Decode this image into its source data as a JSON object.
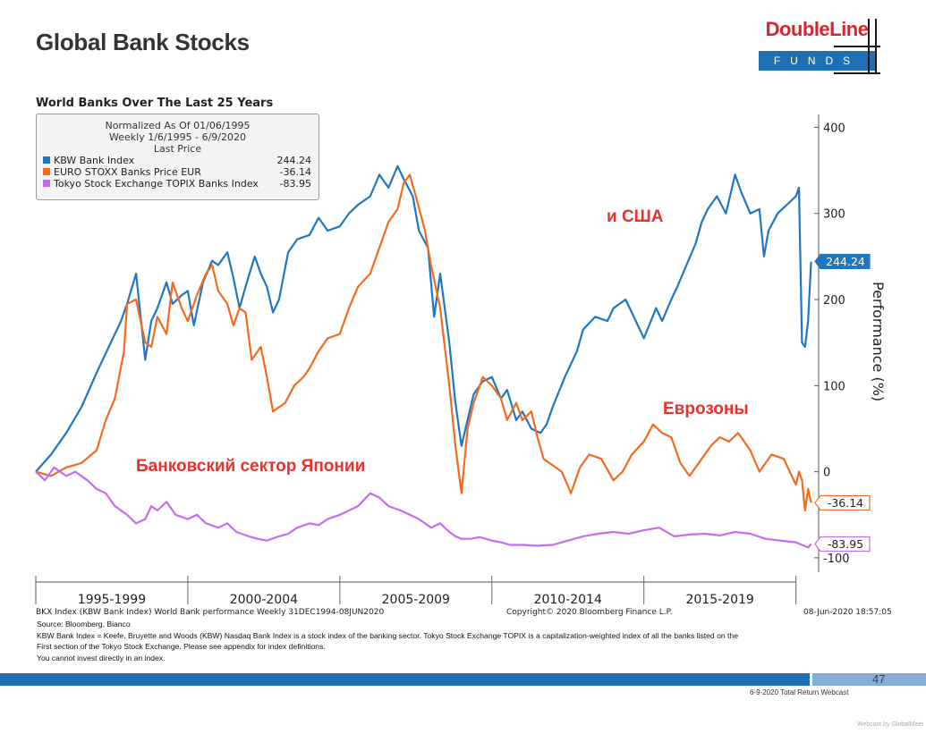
{
  "slide": {
    "title": "Global Bank Stocks",
    "page_number": "47",
    "webcast": "6-9-2020 Total Return Webcast",
    "credit": "Webcast by GlobalMeet"
  },
  "logo": {
    "top": "DoubleLine",
    "bottom": "FUNDS"
  },
  "chart_data": {
    "type": "line",
    "title": "World Banks Over The Last 25 Years",
    "legend": {
      "header": [
        "Normalized As Of 01/06/1995",
        "Weekly 1/6/1995 - 6/9/2020",
        "Last Price"
      ],
      "placement": "top-left"
    },
    "ylabel": "Performance (%)",
    "ylim": [
      -125,
      415
    ],
    "yticks": [
      "400",
      "300",
      "200",
      "100",
      "0",
      "-100"
    ],
    "x_periods": [
      "1995-1999",
      "2000-2004",
      "2005-2009",
      "2010-2014",
      "2015-2019"
    ],
    "xlim": [
      1995.0,
      2020.6
    ],
    "grid": false,
    "series": [
      {
        "name": "KBW Bank Index",
        "color": "#1f77c4",
        "last_value": "244.24",
        "x": [
          1995.0,
          1995.5,
          1996.0,
          1996.5,
          1997.0,
          1997.4,
          1997.8,
          1998.0,
          1998.3,
          1998.6,
          1998.8,
          1999.0,
          1999.3,
          1999.5,
          1999.8,
          2000.0,
          2000.2,
          2000.5,
          2000.8,
          2001.0,
          2001.3,
          2001.5,
          2001.7,
          2001.9,
          2002.2,
          2002.4,
          2002.6,
          2002.8,
          2003.0,
          2003.3,
          2003.6,
          2004.0,
          2004.3,
          2004.6,
          2005.0,
          2005.3,
          2005.6,
          2006.0,
          2006.3,
          2006.6,
          2006.9,
          2007.1,
          2007.4,
          2007.6,
          2007.9,
          2008.1,
          2008.3,
          2008.6,
          2008.8,
          2009.0,
          2009.2,
          2009.4,
          2009.7,
          2010.0,
          2010.3,
          2010.5,
          2010.8,
          2011.0,
          2011.3,
          2011.6,
          2011.8,
          2012.0,
          2012.4,
          2012.8,
          2013.0,
          2013.4,
          2013.8,
          2014.0,
          2014.4,
          2014.8,
          2015.0,
          2015.4,
          2015.6,
          2015.9,
          2016.1,
          2016.4,
          2016.7,
          2016.9,
          2017.1,
          2017.4,
          2017.7,
          2018.0,
          2018.2,
          2018.5,
          2018.8,
          2018.95,
          2019.1,
          2019.4,
          2019.7,
          2020.0,
          2020.1,
          2020.15,
          2020.2,
          2020.3,
          2020.4,
          2020.5
        ],
        "y": [
          0,
          20,
          45,
          75,
          115,
          145,
          175,
          195,
          230,
          130,
          175,
          190,
          220,
          195,
          205,
          210,
          170,
          220,
          245,
          240,
          255,
          225,
          190,
          215,
          250,
          230,
          215,
          185,
          200,
          255,
          270,
          275,
          295,
          280,
          285,
          300,
          310,
          320,
          345,
          330,
          355,
          340,
          320,
          280,
          260,
          180,
          230,
          150,
          80,
          30,
          60,
          90,
          105,
          110,
          85,
          95,
          60,
          70,
          50,
          45,
          55,
          75,
          110,
          140,
          165,
          180,
          175,
          190,
          200,
          170,
          155,
          190,
          175,
          200,
          215,
          240,
          265,
          290,
          305,
          320,
          300,
          345,
          325,
          300,
          305,
          250,
          280,
          300,
          310,
          320,
          330,
          240,
          150,
          145,
          175,
          244
        ]
      },
      {
        "name": "EURO STOXX Banks Price EUR",
        "color": "#f46a1f",
        "last_value": "-36.14",
        "x": [
          1995.0,
          1995.5,
          1996.0,
          1996.5,
          1997.0,
          1997.3,
          1997.6,
          1997.9,
          1998.0,
          1998.3,
          1998.6,
          1998.8,
          1999.0,
          1999.3,
          1999.5,
          1999.8,
          2000.0,
          2000.3,
          2000.6,
          2000.8,
          2001.0,
          2001.3,
          2001.5,
          2001.7,
          2001.9,
          2002.1,
          2002.4,
          2002.6,
          2002.8,
          2003.0,
          2003.2,
          2003.5,
          2003.8,
          2004.0,
          2004.3,
          2004.6,
          2005.0,
          2005.3,
          2005.6,
          2006.0,
          2006.3,
          2006.6,
          2006.9,
          2007.1,
          2007.3,
          2007.5,
          2007.8,
          2008.0,
          2008.3,
          2008.6,
          2008.8,
          2009.0,
          2009.2,
          2009.4,
          2009.7,
          2010.0,
          2010.3,
          2010.5,
          2010.8,
          2011.0,
          2011.3,
          2011.5,
          2011.7,
          2011.9,
          2012.3,
          2012.6,
          2012.9,
          2013.2,
          2013.6,
          2014.0,
          2014.3,
          2014.6,
          2015.0,
          2015.3,
          2015.6,
          2015.9,
          2016.2,
          2016.5,
          2016.9,
          2017.2,
          2017.5,
          2017.8,
          2018.1,
          2018.5,
          2018.8,
          2019.2,
          2019.6,
          2020.0,
          2020.1,
          2020.2,
          2020.3,
          2020.4,
          2020.5
        ],
        "y": [
          0,
          -5,
          5,
          10,
          25,
          60,
          85,
          140,
          195,
          200,
          150,
          145,
          180,
          160,
          220,
          190,
          175,
          205,
          230,
          240,
          210,
          195,
          170,
          190,
          185,
          130,
          145,
          110,
          70,
          75,
          80,
          100,
          110,
          120,
          140,
          155,
          160,
          190,
          215,
          230,
          260,
          290,
          305,
          335,
          345,
          320,
          280,
          240,
          190,
          100,
          30,
          -25,
          50,
          80,
          110,
          100,
          85,
          60,
          80,
          60,
          70,
          40,
          15,
          10,
          0,
          -25,
          5,
          20,
          15,
          -10,
          0,
          20,
          35,
          55,
          45,
          40,
          10,
          -5,
          15,
          30,
          40,
          35,
          45,
          25,
          0,
          20,
          15,
          -15,
          0,
          -10,
          -45,
          -20,
          -36
        ]
      },
      {
        "name": "Tokyo Stock Exchange TOPIX Banks Index",
        "color": "#c56cf0",
        "last_value": "-83.95",
        "x": [
          1995.0,
          1995.3,
          1995.6,
          1996.0,
          1996.3,
          1996.7,
          1997.0,
          1997.3,
          1997.6,
          1998.0,
          1998.3,
          1998.6,
          1998.8,
          1999.0,
          1999.3,
          1999.6,
          2000.0,
          2000.3,
          2000.6,
          2001.0,
          2001.3,
          2001.6,
          2002.0,
          2002.3,
          2002.6,
          2003.0,
          2003.3,
          2003.6,
          2004.0,
          2004.3,
          2004.6,
          2005.0,
          2005.3,
          2005.6,
          2006.0,
          2006.3,
          2006.6,
          2007.0,
          2007.3,
          2007.6,
          2008.0,
          2008.3,
          2008.6,
          2008.8,
          2009.0,
          2009.3,
          2009.6,
          2010.0,
          2010.3,
          2010.6,
          2011.0,
          2011.5,
          2012.0,
          2012.5,
          2013.0,
          2013.5,
          2014.0,
          2014.5,
          2015.0,
          2015.5,
          2016.0,
          2016.5,
          2017.0,
          2017.5,
          2018.0,
          2018.5,
          2019.0,
          2019.5,
          2020.0,
          2020.2,
          2020.4,
          2020.5
        ],
        "y": [
          0,
          -10,
          5,
          -5,
          0,
          -10,
          -20,
          -25,
          -40,
          -50,
          -60,
          -55,
          -40,
          -45,
          -35,
          -50,
          -55,
          -50,
          -60,
          -65,
          -60,
          -70,
          -75,
          -78,
          -80,
          -75,
          -72,
          -65,
          -60,
          -62,
          -55,
          -50,
          -45,
          -40,
          -25,
          -30,
          -40,
          -45,
          -50,
          -55,
          -65,
          -60,
          -70,
          -75,
          -78,
          -78,
          -76,
          -80,
          -82,
          -85,
          -85,
          -86,
          -85,
          -80,
          -75,
          -72,
          -70,
          -72,
          -68,
          -65,
          -75,
          -73,
          -72,
          -74,
          -70,
          -72,
          -78,
          -80,
          -82,
          -85,
          -88,
          -84
        ]
      }
    ],
    "annotations": [
      {
        "text": "и США",
        "color": "#e8322b"
      },
      {
        "text": "Еврозоны",
        "color": "#e8322b"
      },
      {
        "text": "Банковский сектор Японии",
        "color": "#e8322b"
      }
    ]
  },
  "footer": {
    "left_caption": "BKX Index (KBW Bank Index) World Bank performance  Weekly 31DEC1994-08JUN2020",
    "copyright": "Copyright© 2020 Bloomberg Finance L.P.",
    "timestamp": "08-Jun-2020 18:57:05",
    "notes": [
      "Source: Bloomberg, Bianco",
      "KBW Bank Index = Keefe, Bruyette and Woods (KBW) Nasdaq Bank Index is a stock index of the banking sector. Tokyo Stock Exchange TOPIX is a capitalization-weighted index of all the banks listed on the",
      "First section of the Tokyo Stock Exchange. Please see appendix for index definitions.",
      "You cannot invest directly in an index."
    ]
  }
}
